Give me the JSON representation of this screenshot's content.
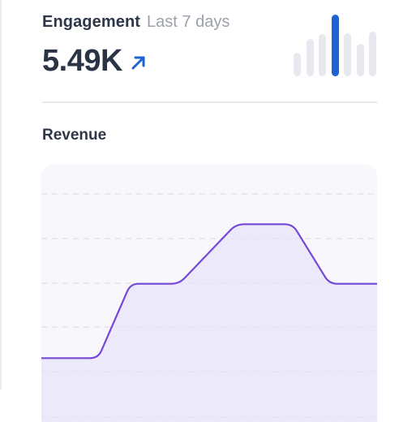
{
  "engagement": {
    "title": "Engagement",
    "period": "Last 7 days",
    "value": "5.49K",
    "trend_icon": "arrow-up-right-icon",
    "accent_color": "#1e63d6",
    "bars": [
      {
        "level": 0.38,
        "active": false
      },
      {
        "level": 0.6,
        "active": false
      },
      {
        "level": 0.68,
        "active": false
      },
      {
        "level": 1.0,
        "active": true
      },
      {
        "level": 0.7,
        "active": false
      },
      {
        "level": 0.52,
        "active": false
      },
      {
        "level": 0.72,
        "active": false
      }
    ]
  },
  "revenue": {
    "title": "Revenue",
    "line_color": "#7447d6",
    "fill_color": "#ece9fa",
    "chart_data": {
      "type": "area",
      "title": "",
      "xlabel": "",
      "ylabel": "",
      "x": [
        0,
        1,
        2,
        3,
        4,
        5,
        6,
        7
      ],
      "values": [
        1.5,
        1.5,
        3.0,
        3.0,
        4.2,
        4.2,
        3.0,
        3.0
      ],
      "ylim": [
        0,
        5.4
      ],
      "grid": true,
      "legend": "none"
    }
  }
}
